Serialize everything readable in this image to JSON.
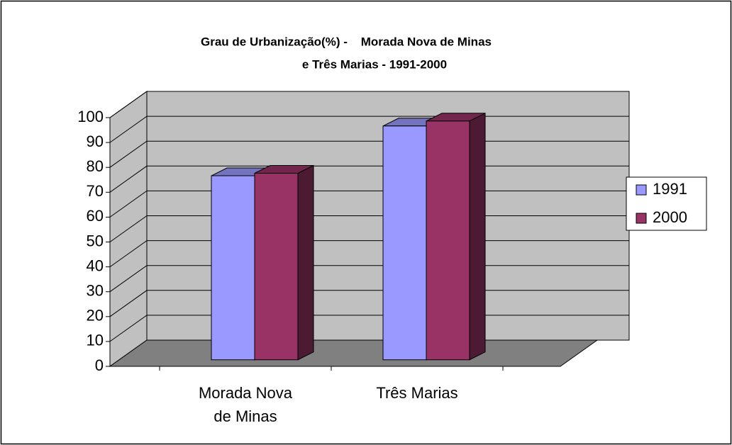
{
  "chart_data": {
    "type": "bar3d",
    "title": [
      "Grau de Urbanização(%) -    Morada Nova de Minas",
      "e Três Marias - 1991-2000"
    ],
    "categories": [
      [
        "Morada Nova",
        "de Minas"
      ],
      [
        "Três Marias"
      ]
    ],
    "series": [
      {
        "name": "1991",
        "color": "#9999ff",
        "values": [
          74,
          94
        ]
      },
      {
        "name": "2000",
        "color": "#993366",
        "values": [
          75,
          96
        ]
      }
    ],
    "ylim": [
      0,
      100
    ],
    "yticks": [
      0,
      10,
      20,
      30,
      40,
      50,
      60,
      70,
      80,
      90,
      100
    ],
    "grid": true,
    "legend": "right"
  }
}
